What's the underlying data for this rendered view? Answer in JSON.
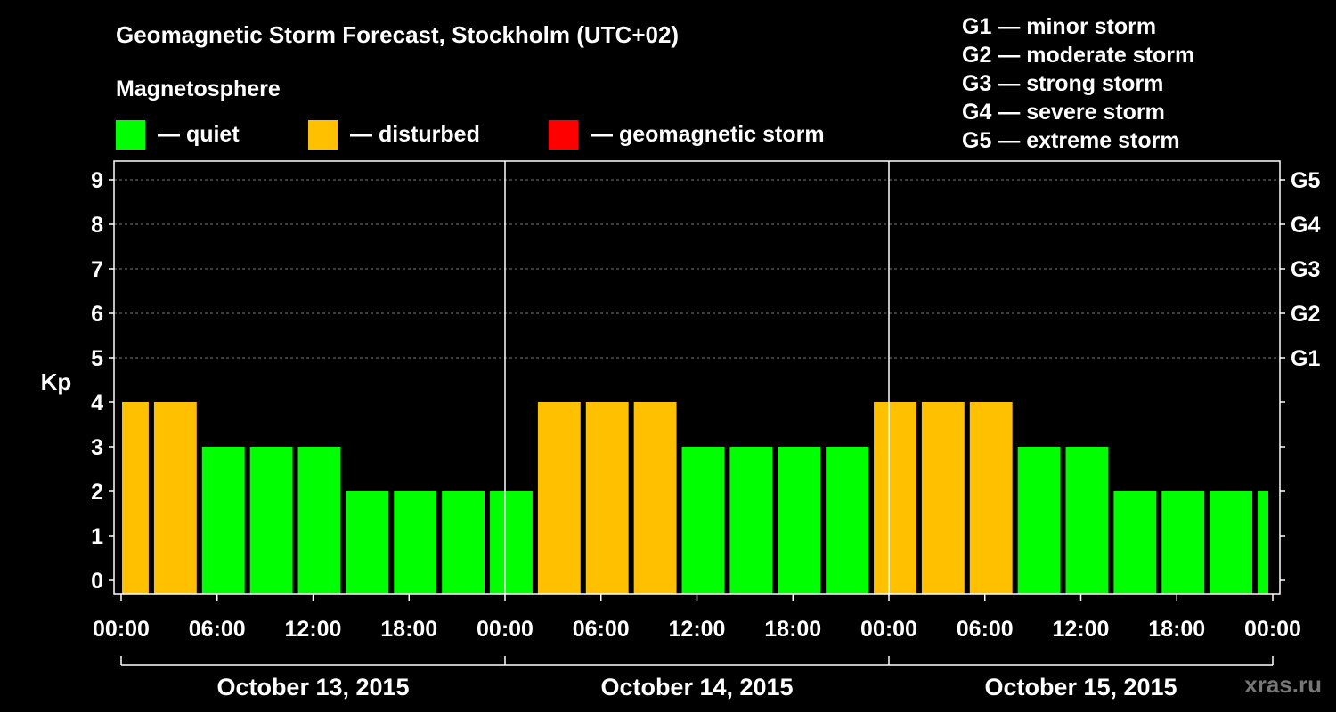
{
  "header": {
    "title": "Geomagnetic Storm Forecast, Stockholm (UTC+02)",
    "magnetosphere_label": "Magnetosphere"
  },
  "legend": [
    {
      "label": "— quiet",
      "color": "#00ff00"
    },
    {
      "label": "— disturbed",
      "color": "#ffc000"
    },
    {
      "label": "— geomagnetic storm",
      "color": "#ff0000"
    }
  ],
  "g_scale": [
    "G1 — minor storm",
    "G2 — moderate storm",
    "G3 — strong storm",
    "G4 — severe storm",
    "G5 — extreme storm"
  ],
  "watermark": "xras.ru",
  "chart_data": {
    "type": "bar",
    "title": "Geomagnetic Storm Forecast, Stockholm (UTC+02)",
    "ylabel": "Kp",
    "ylim": [
      0,
      9
    ],
    "yticks": [
      "0",
      "1",
      "2",
      "3",
      "4",
      "5",
      "6",
      "7",
      "8",
      "9"
    ],
    "right_axis_labels": [
      {
        "kp": 5,
        "label": "G1"
      },
      {
        "kp": 6,
        "label": "G2"
      },
      {
        "kp": 7,
        "label": "G3"
      },
      {
        "kp": 8,
        "label": "G4"
      },
      {
        "kp": 9,
        "label": "G5"
      }
    ],
    "x_start_hour": 0,
    "x_end_hour": 72,
    "time_tick_hours": [
      0,
      6,
      12,
      18,
      24,
      30,
      36,
      42,
      48,
      54,
      60,
      66,
      72
    ],
    "time_tick_labels": [
      "00:00",
      "06:00",
      "12:00",
      "18:00",
      "00:00",
      "06:00",
      "12:00",
      "18:00",
      "00:00",
      "06:00",
      "12:00",
      "18:00",
      "00:00"
    ],
    "days": [
      "October 13, 2015",
      "October 14, 2015",
      "October 15, 2015"
    ],
    "day_boundaries_hours": [
      24,
      48
    ],
    "color_thresholds": {
      "quiet_below": 4,
      "disturbed_below": 5
    },
    "colors": {
      "quiet": "#00ff00",
      "disturbed": "#ffc000",
      "storm": "#ff0000"
    },
    "bars": [
      {
        "start": 0,
        "end": 2,
        "kp": 4
      },
      {
        "start": 2,
        "end": 5,
        "kp": 4
      },
      {
        "start": 5,
        "end": 8,
        "kp": 3
      },
      {
        "start": 8,
        "end": 11,
        "kp": 3
      },
      {
        "start": 11,
        "end": 14,
        "kp": 3
      },
      {
        "start": 14,
        "end": 17,
        "kp": 2
      },
      {
        "start": 17,
        "end": 20,
        "kp": 2
      },
      {
        "start": 20,
        "end": 23,
        "kp": 2
      },
      {
        "start": 23,
        "end": 26,
        "kp": 2
      },
      {
        "start": 26,
        "end": 29,
        "kp": 4
      },
      {
        "start": 29,
        "end": 32,
        "kp": 4
      },
      {
        "start": 32,
        "end": 35,
        "kp": 4
      },
      {
        "start": 35,
        "end": 38,
        "kp": 3
      },
      {
        "start": 38,
        "end": 41,
        "kp": 3
      },
      {
        "start": 41,
        "end": 44,
        "kp": 3
      },
      {
        "start": 44,
        "end": 47,
        "kp": 3
      },
      {
        "start": 47,
        "end": 50,
        "kp": 4
      },
      {
        "start": 50,
        "end": 53,
        "kp": 4
      },
      {
        "start": 53,
        "end": 56,
        "kp": 4
      },
      {
        "start": 56,
        "end": 59,
        "kp": 3
      },
      {
        "start": 59,
        "end": 62,
        "kp": 3
      },
      {
        "start": 62,
        "end": 65,
        "kp": 2
      },
      {
        "start": 65,
        "end": 68,
        "kp": 2
      },
      {
        "start": 68,
        "end": 71,
        "kp": 2
      },
      {
        "start": 71,
        "end": 72,
        "kp": 2
      }
    ]
  }
}
